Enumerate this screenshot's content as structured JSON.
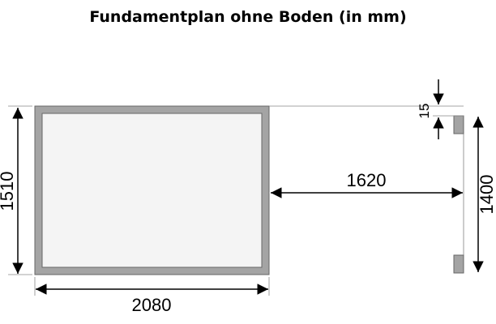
{
  "title": "Fundamentplan ohne Boden (in mm)",
  "dimensions": {
    "depth_left": "1510",
    "width_bottom": "2080",
    "gap": "1620",
    "offset": "15",
    "depth_right": "1400"
  },
  "colors": {
    "frame": "#a4a4a4",
    "frame_stroke": "#666666",
    "inner": "#f4f4f4",
    "line": "#000000"
  }
}
